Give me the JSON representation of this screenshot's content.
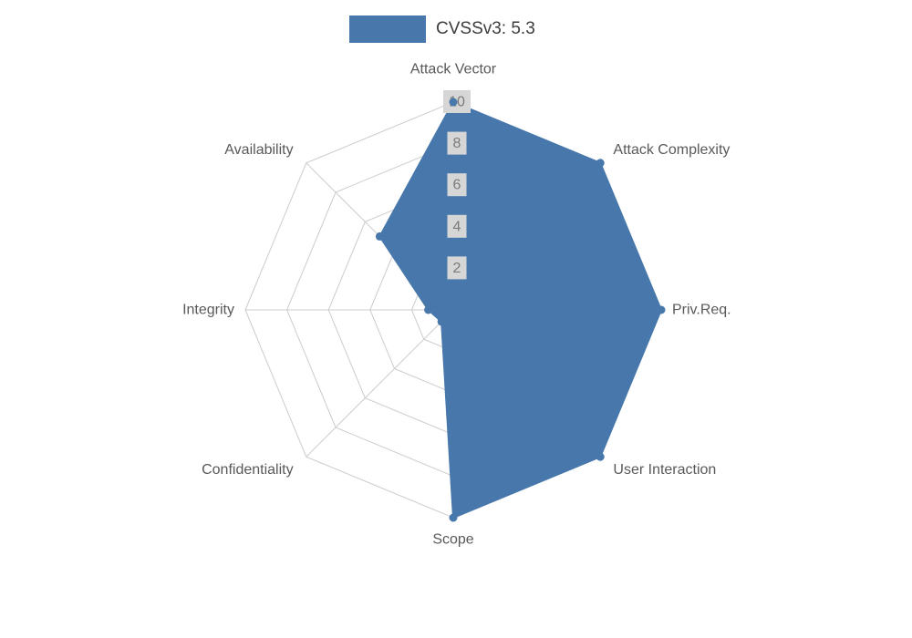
{
  "legend": {
    "label": "CVSSv3: 5.3"
  },
  "chart_data": {
    "type": "radar",
    "title": "CVSSv3: 5.3",
    "categories": [
      "Attack Vector",
      "Attack Complexity",
      "Priv.Req.",
      "User Interaction",
      "Scope",
      "Confidentiality",
      "Integrity",
      "Availability"
    ],
    "series": [
      {
        "name": "CVSSv3: 5.3",
        "values": [
          10,
          10,
          10,
          10,
          10,
          0.8,
          1.2,
          5
        ]
      }
    ],
    "rmax": 10,
    "ticks": [
      2,
      4,
      6,
      8,
      10
    ],
    "grid": true,
    "legend_position": "top-center",
    "colors": {
      "series_fill": "#4878ab",
      "grid_line": "#cccccc",
      "axis_label": "#595959",
      "tick_text": "#7a7a7a",
      "tick_box": "#d6d6d6",
      "legend_text": "#3d3d3d"
    }
  }
}
